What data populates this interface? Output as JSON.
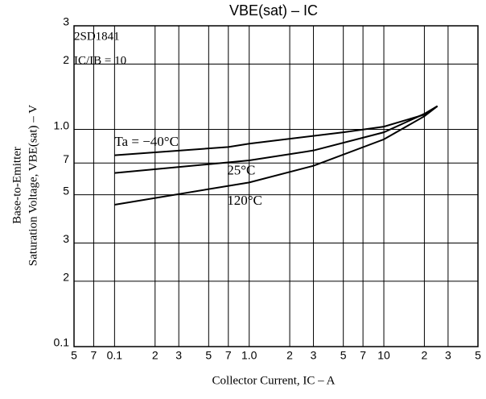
{
  "chart_data": {
    "type": "line",
    "title": "VBE(sat) – IC",
    "device": "2SD1841",
    "condition": "IC/IB = 10",
    "y_label": [
      "Base-to-Emitter",
      "Saturation Voltage, VBE(sat) – V"
    ],
    "x_label": "Collector Current, IC – A",
    "log_x": true,
    "log_y": true,
    "grid": true,
    "xlim": [
      0.05,
      50
    ],
    "ylim": [
      0.1,
      3
    ],
    "xticks": [
      {
        "value": 0.05,
        "label": "5"
      },
      {
        "value": 0.07,
        "label": "7"
      },
      0.1,
      {
        "value": 0.2,
        "label": "2"
      },
      {
        "value": 0.3,
        "label": "3"
      },
      {
        "value": 0.5,
        "label": "5"
      },
      {
        "value": 0.7,
        "label": "7"
      },
      {
        "value": 1,
        "label": "1.0"
      },
      2,
      3,
      5,
      7,
      10,
      {
        "value": 20,
        "label": "2"
      },
      {
        "value": 30,
        "label": "3"
      },
      {
        "value": 50,
        "label": "5"
      }
    ],
    "yticks": [
      0.1,
      {
        "value": 0.2,
        "label": "2"
      },
      {
        "value": 0.3,
        "label": "3"
      },
      {
        "value": 0.5,
        "label": "5"
      },
      {
        "value": 0.7,
        "label": "7"
      },
      {
        "value": 1,
        "label": "1.0"
      },
      2,
      3
    ],
    "series": [
      {
        "name": "Ta = −40°C",
        "color": "#000000",
        "x": [
          0.1,
          0.7,
          1,
          5,
          10,
          20,
          25
        ],
        "values": [
          0.76,
          0.83,
          0.86,
          0.97,
          1.03,
          1.17,
          1.28
        ]
      },
      {
        "name": "25°C",
        "color": "#000000",
        "x": [
          0.1,
          1,
          3,
          10,
          20,
          25
        ],
        "values": [
          0.63,
          0.72,
          0.8,
          0.97,
          1.18,
          1.28
        ]
      },
      {
        "name": "120°C",
        "color": "#000000",
        "x": [
          0.1,
          1,
          3,
          10,
          20,
          25
        ],
        "values": [
          0.45,
          0.57,
          0.68,
          0.9,
          1.15,
          1.28
        ]
      }
    ]
  }
}
